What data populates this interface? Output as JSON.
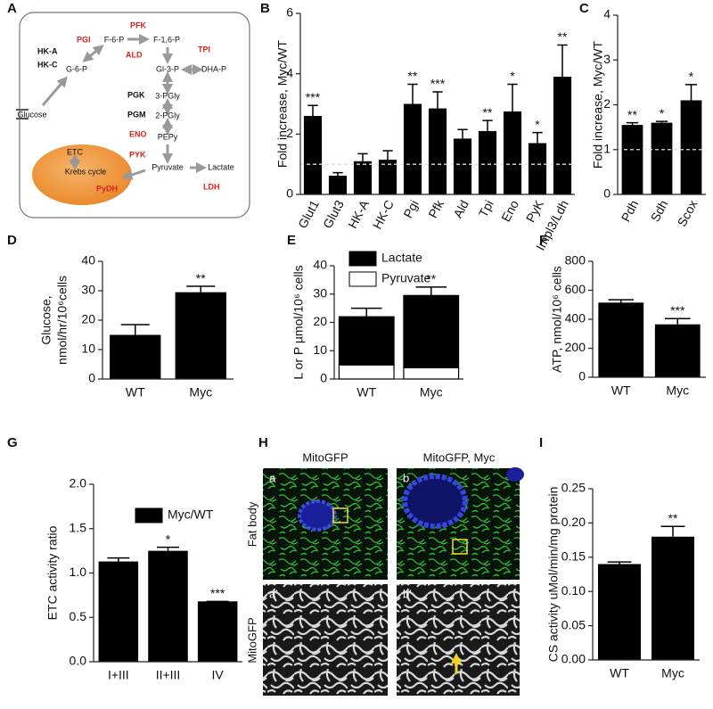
{
  "diagram": {
    "panel": "A",
    "enzymes": [
      "HK-A",
      "HK-C",
      "PGI",
      "PFK",
      "ALD",
      "TPI",
      "PGK",
      "PGM",
      "ENO",
      "PYK",
      "PyDH",
      "LDH"
    ],
    "metabolites": [
      "Glucose",
      "G-6-P",
      "F-6-P",
      "F-1,6-P",
      "Gl-3-P",
      "DHA-P",
      "3-PGly",
      "2-PGly",
      "PEPy",
      "Pyruvate",
      "Lactate"
    ],
    "mitochondrion": [
      "ETC",
      "Krebs cycle"
    ]
  },
  "images": {
    "panel": "H",
    "column_titles": [
      "MitoGFP",
      "MitoGFP, Myc"
    ],
    "row_titles": [
      "Fat body",
      "MitoGFP"
    ],
    "sublabels": [
      "a",
      "b",
      "a'",
      "b'"
    ]
  },
  "chart_data": [
    {
      "panel": "B",
      "type": "bar",
      "ylabel": [
        "Fold increase, Myc/WT"
      ],
      "categories": [
        "Glut1",
        "Glut3",
        "HK-A",
        "HK-C",
        "Pgi",
        "Pfk",
        "Ald",
        "Tpi",
        "Eno",
        "PyK",
        "Impl3/Ldh"
      ],
      "values": [
        2.6,
        0.62,
        1.1,
        1.15,
        3.0,
        2.85,
        1.85,
        2.1,
        2.75,
        1.7,
        3.9
      ],
      "errors": [
        0.35,
        0.1,
        0.25,
        0.3,
        0.65,
        0.55,
        0.3,
        0.35,
        0.9,
        0.35,
        1.05
      ],
      "significance": [
        "***",
        null,
        null,
        null,
        "**",
        "***",
        null,
        "**",
        "*",
        "*",
        "**"
      ],
      "color": "#000000",
      "reference_line": 1,
      "rotate_xlabels": true,
      "ylim": [
        0,
        6
      ],
      "yticks": [
        0,
        2,
        4,
        6
      ]
    },
    {
      "panel": "C",
      "type": "bar",
      "ylabel": [
        "Fold increase, Myc/WT"
      ],
      "categories": [
        "Pdh",
        "Sdh",
        "Scox"
      ],
      "values": [
        1.55,
        1.6,
        2.1
      ],
      "errors": [
        0.05,
        0.03,
        0.35
      ],
      "significance": [
        "**",
        "*",
        "*"
      ],
      "color": "#000000",
      "reference_line": 1,
      "rotate_xlabels": true,
      "ylim": [
        0,
        4
      ],
      "yticks": [
        0,
        1,
        2,
        3,
        4
      ]
    },
    {
      "panel": "D",
      "type": "bar",
      "ylabel": [
        "Glucose,",
        "nmol/hr/10⁶cells"
      ],
      "categories": [
        "WT",
        "Myc"
      ],
      "values": [
        15,
        29.5
      ],
      "errors": [
        3.5,
        2
      ],
      "significance": [
        null,
        "**"
      ],
      "color": "#000000",
      "ylim": [
        0,
        40
      ],
      "yticks": [
        0,
        10,
        20,
        30,
        40
      ]
    },
    {
      "panel": "E",
      "type": "stacked_bar",
      "ylabel": [
        "L or P µmol/10⁶ cells"
      ],
      "categories": [
        "WT",
        "Myc"
      ],
      "series": [
        {
          "name": "Pyruvate",
          "color": "#ffffff",
          "values": [
            5,
            4
          ]
        },
        {
          "name": "Lactate",
          "color": "#000000",
          "values": [
            17,
            25.5
          ],
          "errors": [
            3,
            3
          ]
        }
      ],
      "significance": [
        null,
        "**"
      ],
      "ylim": [
        0,
        40
      ],
      "yticks": [
        0,
        10,
        20,
        30,
        40
      ]
    },
    {
      "panel": "F",
      "type": "bar",
      "ylabel": [
        "ATP, nmol/10⁶ cells"
      ],
      "categories": [
        "WT",
        "Myc"
      ],
      "values": [
        515,
        365
      ],
      "errors": [
        20,
        40
      ],
      "significance": [
        null,
        "***"
      ],
      "color": "#000000",
      "ylim": [
        0,
        800
      ],
      "yticks": [
        0,
        200,
        400,
        600,
        800
      ]
    },
    {
      "panel": "G",
      "type": "bar",
      "ylabel": [
        "ETC activity ratio"
      ],
      "categories": [
        "I+III",
        "II+III",
        "IV"
      ],
      "series": [
        {
          "name": "Myc/WT",
          "color": "#000000",
          "values": [
            1.13,
            1.25,
            0.68
          ],
          "errors": [
            0.04,
            0.04,
            0.0
          ]
        }
      ],
      "significance": [
        null,
        "*",
        "***"
      ],
      "ylim": [
        0,
        2
      ],
      "yticks": [
        {
          "value": 0,
          "label": "0.0"
        },
        0.5,
        {
          "value": 1,
          "label": "1.0"
        },
        1.5,
        {
          "value": 2,
          "label": "2.0"
        }
      ]
    },
    {
      "panel": "I",
      "type": "bar",
      "ylabel": [
        "CS activity uMol/min/mg protein"
      ],
      "categories": [
        "WT",
        "Myc"
      ],
      "values": [
        0.14,
        0.18
      ],
      "errors": [
        0.003,
        0.015
      ],
      "significance": [
        null,
        "**"
      ],
      "color": "#000000",
      "ylim": [
        0,
        0.25
      ],
      "yticks": [
        {
          "value": 0,
          "label": "0.00"
        },
        0.05,
        {
          "value": 0.1,
          "label": "0.10"
        },
        0.15,
        {
          "value": 0.2,
          "label": "0.20"
        },
        0.25
      ]
    }
  ]
}
